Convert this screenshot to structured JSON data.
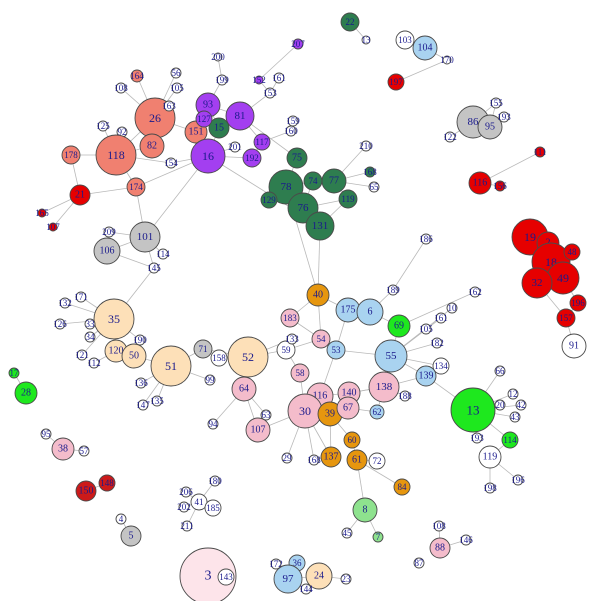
{
  "colors": {
    "salmon": "#f08070",
    "red": "#e60000",
    "darkred": "#cc1a1a",
    "purple": "#a33ff0",
    "darkgreen": "#2e7d4f",
    "grey": "#c4c4c4",
    "peach": "#fde0b8",
    "orange": "#e6960e",
    "pink": "#f4bccb",
    "lightblue": "#a9d3f0",
    "blue": "#1414d6",
    "green": "#1ee81e",
    "lightgreen": "#8ee28e",
    "lightpink": "#fde4ea",
    "white": "#ffffff"
  },
  "nodes": [
    {
      "id": "n22",
      "label": "22",
      "color": "darkgreen"
    },
    {
      "id": "n13t",
      "label": "13",
      "color": "white"
    },
    {
      "id": "n103",
      "label": "103",
      "color": "white"
    },
    {
      "id": "n104",
      "label": "104",
      "color": "lightblue"
    },
    {
      "id": "n170",
      "label": "170",
      "color": "white"
    },
    {
      "id": "n200",
      "label": "200",
      "color": "white"
    },
    {
      "id": "n207",
      "label": "207",
      "color": "purple"
    },
    {
      "id": "n199",
      "label": "199",
      "color": "white"
    },
    {
      "id": "n56",
      "label": "56",
      "color": "white"
    },
    {
      "id": "n105",
      "label": "105",
      "color": "white"
    },
    {
      "id": "n164",
      "label": "164",
      "color": "salmon"
    },
    {
      "id": "n108",
      "label": "108",
      "color": "white"
    },
    {
      "id": "n26",
      "label": "26",
      "color": "salmon"
    },
    {
      "id": "n163",
      "label": "163",
      "color": "white"
    },
    {
      "id": "n93",
      "label": "93",
      "color": "purple"
    },
    {
      "id": "n81",
      "label": "81",
      "color": "purple"
    },
    {
      "id": "n152",
      "label": "152",
      "color": "purple"
    },
    {
      "id": "n153",
      "label": "153",
      "color": "white"
    },
    {
      "id": "n15",
      "label": "15",
      "color": "darkgreen"
    },
    {
      "id": "n151",
      "label": "151",
      "color": "salmon"
    },
    {
      "id": "n127",
      "label": "127",
      "color": "purple"
    },
    {
      "id": "n125",
      "label": "125",
      "color": "white"
    },
    {
      "id": "n92",
      "label": "92",
      "color": "white"
    },
    {
      "id": "n82",
      "label": "82",
      "color": "salmon"
    },
    {
      "id": "n118",
      "label": "118",
      "color": "salmon"
    },
    {
      "id": "n178",
      "label": "178",
      "color": "salmon"
    },
    {
      "id": "n154",
      "label": "154",
      "color": "white"
    },
    {
      "id": "n16",
      "label": "16",
      "color": "purple"
    },
    {
      "id": "n201",
      "label": "201",
      "color": "white"
    },
    {
      "id": "n192",
      "label": "192",
      "color": "purple"
    },
    {
      "id": "n117",
      "label": "117",
      "color": "purple"
    },
    {
      "id": "n160",
      "label": "160",
      "color": "white"
    },
    {
      "id": "n159",
      "label": "159",
      "color": "white"
    },
    {
      "id": "n161top",
      "label": "161",
      "color": "white"
    },
    {
      "id": "n75",
      "label": "75",
      "color": "darkgreen"
    },
    {
      "id": "n210",
      "label": "210",
      "color": "white"
    },
    {
      "id": "n78",
      "label": "78",
      "color": "darkgreen"
    },
    {
      "id": "n74",
      "label": "74",
      "color": "darkgreen"
    },
    {
      "id": "n77",
      "label": "77",
      "color": "darkgreen"
    },
    {
      "id": "n168",
      "label": "168",
      "color": "darkgreen"
    },
    {
      "id": "n65",
      "label": "65",
      "color": "white"
    },
    {
      "id": "n129",
      "label": "129",
      "color": "darkgreen"
    },
    {
      "id": "n76",
      "label": "76",
      "color": "darkgreen"
    },
    {
      "id": "n119",
      "label": "119",
      "color": "darkgreen"
    },
    {
      "id": "n131",
      "label": "131",
      "color": "darkgreen"
    },
    {
      "id": "n21",
      "label": "21",
      "color": "red"
    },
    {
      "id": "n174",
      "label": "174",
      "color": "salmon"
    },
    {
      "id": "n165",
      "label": "165",
      "color": "red"
    },
    {
      "id": "n107",
      "label": "107",
      "color": "red"
    },
    {
      "id": "n209",
      "label": "209",
      "color": "white"
    },
    {
      "id": "n101",
      "label": "101",
      "color": "grey"
    },
    {
      "id": "n106",
      "label": "106",
      "color": "grey"
    },
    {
      "id": "n114",
      "label": "114",
      "color": "white"
    },
    {
      "id": "n145",
      "label": "145",
      "color": "white"
    },
    {
      "id": "n186",
      "label": "186",
      "color": "white"
    },
    {
      "id": "n189",
      "label": "189",
      "color": "white"
    },
    {
      "id": "n40",
      "label": "40",
      "color": "orange"
    },
    {
      "id": "n175",
      "label": "175",
      "color": "lightblue"
    },
    {
      "id": "n6",
      "label": "6",
      "color": "lightblue"
    },
    {
      "id": "n183",
      "label": "183",
      "color": "pink"
    },
    {
      "id": "n54",
      "label": "54",
      "color": "pink"
    },
    {
      "id": "n53",
      "label": "53",
      "color": "lightblue"
    },
    {
      "id": "n69",
      "label": "69",
      "color": "green"
    },
    {
      "id": "n55",
      "label": "55",
      "color": "lightblue"
    },
    {
      "id": "n162",
      "label": "162",
      "color": "white"
    },
    {
      "id": "n10",
      "label": "10",
      "color": "white"
    },
    {
      "id": "n161",
      "label": "161",
      "color": "white"
    },
    {
      "id": "n105b",
      "label": "105",
      "color": "white"
    },
    {
      "id": "n182",
      "label": "182",
      "color": "white"
    },
    {
      "id": "n134",
      "label": "134",
      "color": "white"
    },
    {
      "id": "n139",
      "label": "139",
      "color": "lightblue"
    },
    {
      "id": "n138",
      "label": "138",
      "color": "pink"
    },
    {
      "id": "n188",
      "label": "188",
      "color": "white"
    },
    {
      "id": "n13",
      "label": "13",
      "color": "green"
    },
    {
      "id": "n66",
      "label": "66",
      "color": "white"
    },
    {
      "id": "n12",
      "label": "12",
      "color": "white"
    },
    {
      "id": "n42",
      "label": "42",
      "color": "white"
    },
    {
      "id": "n43",
      "label": "43",
      "color": "white"
    },
    {
      "id": "n20",
      "label": "20",
      "color": "white"
    },
    {
      "id": "n193",
      "label": "193",
      "color": "white"
    },
    {
      "id": "n114b",
      "label": "114",
      "color": "green"
    },
    {
      "id": "n119b",
      "label": "119",
      "color": "white"
    },
    {
      "id": "n196",
      "label": "196",
      "color": "white"
    },
    {
      "id": "n198",
      "label": "198",
      "color": "white"
    },
    {
      "id": "n171",
      "label": "171",
      "color": "white"
    },
    {
      "id": "n132",
      "label": "132",
      "color": "white"
    },
    {
      "id": "n126",
      "label": "126",
      "color": "white"
    },
    {
      "id": "n35",
      "label": "35",
      "color": "peach"
    },
    {
      "id": "n33",
      "label": "33",
      "color": "white"
    },
    {
      "id": "n34",
      "label": "34",
      "color": "white"
    },
    {
      "id": "n190",
      "label": "190",
      "color": "white"
    },
    {
      "id": "n121",
      "label": "121",
      "color": "white"
    },
    {
      "id": "n120",
      "label": "120",
      "color": "peach"
    },
    {
      "id": "n112",
      "label": "112",
      "color": "white"
    },
    {
      "id": "n50",
      "label": "50",
      "color": "peach"
    },
    {
      "id": "n51",
      "label": "51",
      "color": "peach"
    },
    {
      "id": "n71",
      "label": "71",
      "color": "grey"
    },
    {
      "id": "n158",
      "label": "158",
      "color": "white"
    },
    {
      "id": "n52",
      "label": "52",
      "color": "peach"
    },
    {
      "id": "n136",
      "label": "136",
      "color": "white"
    },
    {
      "id": "n99",
      "label": "99",
      "color": "white"
    },
    {
      "id": "n147",
      "label": "147",
      "color": "white"
    },
    {
      "id": "n135",
      "label": "135",
      "color": "white"
    },
    {
      "id": "n59",
      "label": "59",
      "color": "white"
    },
    {
      "id": "n133",
      "label": "133",
      "color": "white"
    },
    {
      "id": "n58",
      "label": "58",
      "color": "pink"
    },
    {
      "id": "n64",
      "label": "64",
      "color": "pink"
    },
    {
      "id": "n94",
      "label": "94",
      "color": "white"
    },
    {
      "id": "n63",
      "label": "63",
      "color": "white"
    },
    {
      "id": "n107b",
      "label": "107",
      "color": "pink"
    },
    {
      "id": "n116",
      "label": "116",
      "color": "pink"
    },
    {
      "id": "n140",
      "label": "140",
      "color": "pink"
    },
    {
      "id": "n30",
      "label": "30",
      "color": "pink"
    },
    {
      "id": "n39",
      "label": "39",
      "color": "orange"
    },
    {
      "id": "n67",
      "label": "67",
      "color": "pink"
    },
    {
      "id": "n62",
      "label": "62",
      "color": "lightblue"
    },
    {
      "id": "n29",
      "label": "29",
      "color": "white"
    },
    {
      "id": "n168b",
      "label": "168",
      "color": "white"
    },
    {
      "id": "n137",
      "label": "137",
      "color": "orange"
    },
    {
      "id": "n60",
      "label": "60",
      "color": "orange"
    },
    {
      "id": "n61",
      "label": "61",
      "color": "orange"
    },
    {
      "id": "n72",
      "label": "72",
      "color": "white"
    },
    {
      "id": "n84",
      "label": "84",
      "color": "orange"
    },
    {
      "id": "n8",
      "label": "8",
      "color": "lightgreen"
    },
    {
      "id": "n45",
      "label": "45",
      "color": "white"
    },
    {
      "id": "n7",
      "label": "7",
      "color": "lightgreen"
    },
    {
      "id": "n17",
      "label": "17",
      "color": "green"
    },
    {
      "id": "n28",
      "label": "28",
      "color": "green"
    },
    {
      "id": "n95",
      "label": "95",
      "color": "white"
    },
    {
      "id": "n38",
      "label": "38",
      "color": "pink"
    },
    {
      "id": "n57",
      "label": "57",
      "color": "white"
    },
    {
      "id": "n150",
      "label": "150",
      "color": "darkred"
    },
    {
      "id": "n148",
      "label": "148",
      "color": "darkred"
    },
    {
      "id": "n4",
      "label": "4",
      "color": "white"
    },
    {
      "id": "n5",
      "label": "5",
      "color": "grey"
    },
    {
      "id": "n180",
      "label": "180",
      "color": "white"
    },
    {
      "id": "n206",
      "label": "206",
      "color": "white"
    },
    {
      "id": "n41",
      "label": "41",
      "color": "white"
    },
    {
      "id": "n202",
      "label": "202",
      "color": "white"
    },
    {
      "id": "n185",
      "label": "185",
      "color": "white"
    },
    {
      "id": "n211",
      "label": "211",
      "color": "white"
    },
    {
      "id": "n3",
      "label": "3",
      "color": "lightpink"
    },
    {
      "id": "n143",
      "label": "143",
      "color": "white"
    },
    {
      "id": "n172",
      "label": "172",
      "color": "white"
    },
    {
      "id": "n36",
      "label": "36",
      "color": "lightblue"
    },
    {
      "id": "n97",
      "label": "97",
      "color": "lightblue"
    },
    {
      "id": "n24",
      "label": "24",
      "color": "peach"
    },
    {
      "id": "n144",
      "label": "144",
      "color": "white"
    },
    {
      "id": "n23",
      "label": "23",
      "color": "white"
    },
    {
      "id": "n108b",
      "label": "108",
      "color": "white"
    },
    {
      "id": "n88",
      "label": "88",
      "color": "pink"
    },
    {
      "id": "n146",
      "label": "146",
      "color": "white"
    },
    {
      "id": "n87",
      "label": "87",
      "color": "white"
    },
    {
      "id": "n91",
      "label": "91",
      "color": "white"
    },
    {
      "id": "n111",
      "label": "111",
      "color": "red"
    },
    {
      "id": "n116b",
      "label": "116",
      "color": "red"
    },
    {
      "id": "n156",
      "label": "156",
      "color": "red"
    },
    {
      "id": "n19",
      "label": "19",
      "color": "red"
    },
    {
      "id": "n2",
      "label": "2",
      "color": "red"
    },
    {
      "id": "n18",
      "label": "18",
      "color": "red"
    },
    {
      "id": "n49",
      "label": "49",
      "color": "red"
    },
    {
      "id": "n32",
      "label": "32",
      "color": "red"
    },
    {
      "id": "n48",
      "label": "48",
      "color": "red"
    },
    {
      "id": "n196b",
      "label": "196",
      "color": "red"
    },
    {
      "id": "n157",
      "label": "157",
      "color": "red"
    },
    {
      "id": "n155",
      "label": "155",
      "color": "white"
    },
    {
      "id": "n86",
      "label": "86",
      "color": "grey"
    },
    {
      "id": "n95b",
      "label": "95",
      "color": "grey"
    },
    {
      "id": "n193b",
      "label": "193",
      "color": "white"
    },
    {
      "id": "n122",
      "label": "122",
      "color": "white"
    },
    {
      "id": "n197",
      "label": "197",
      "color": "red"
    }
  ]
}
